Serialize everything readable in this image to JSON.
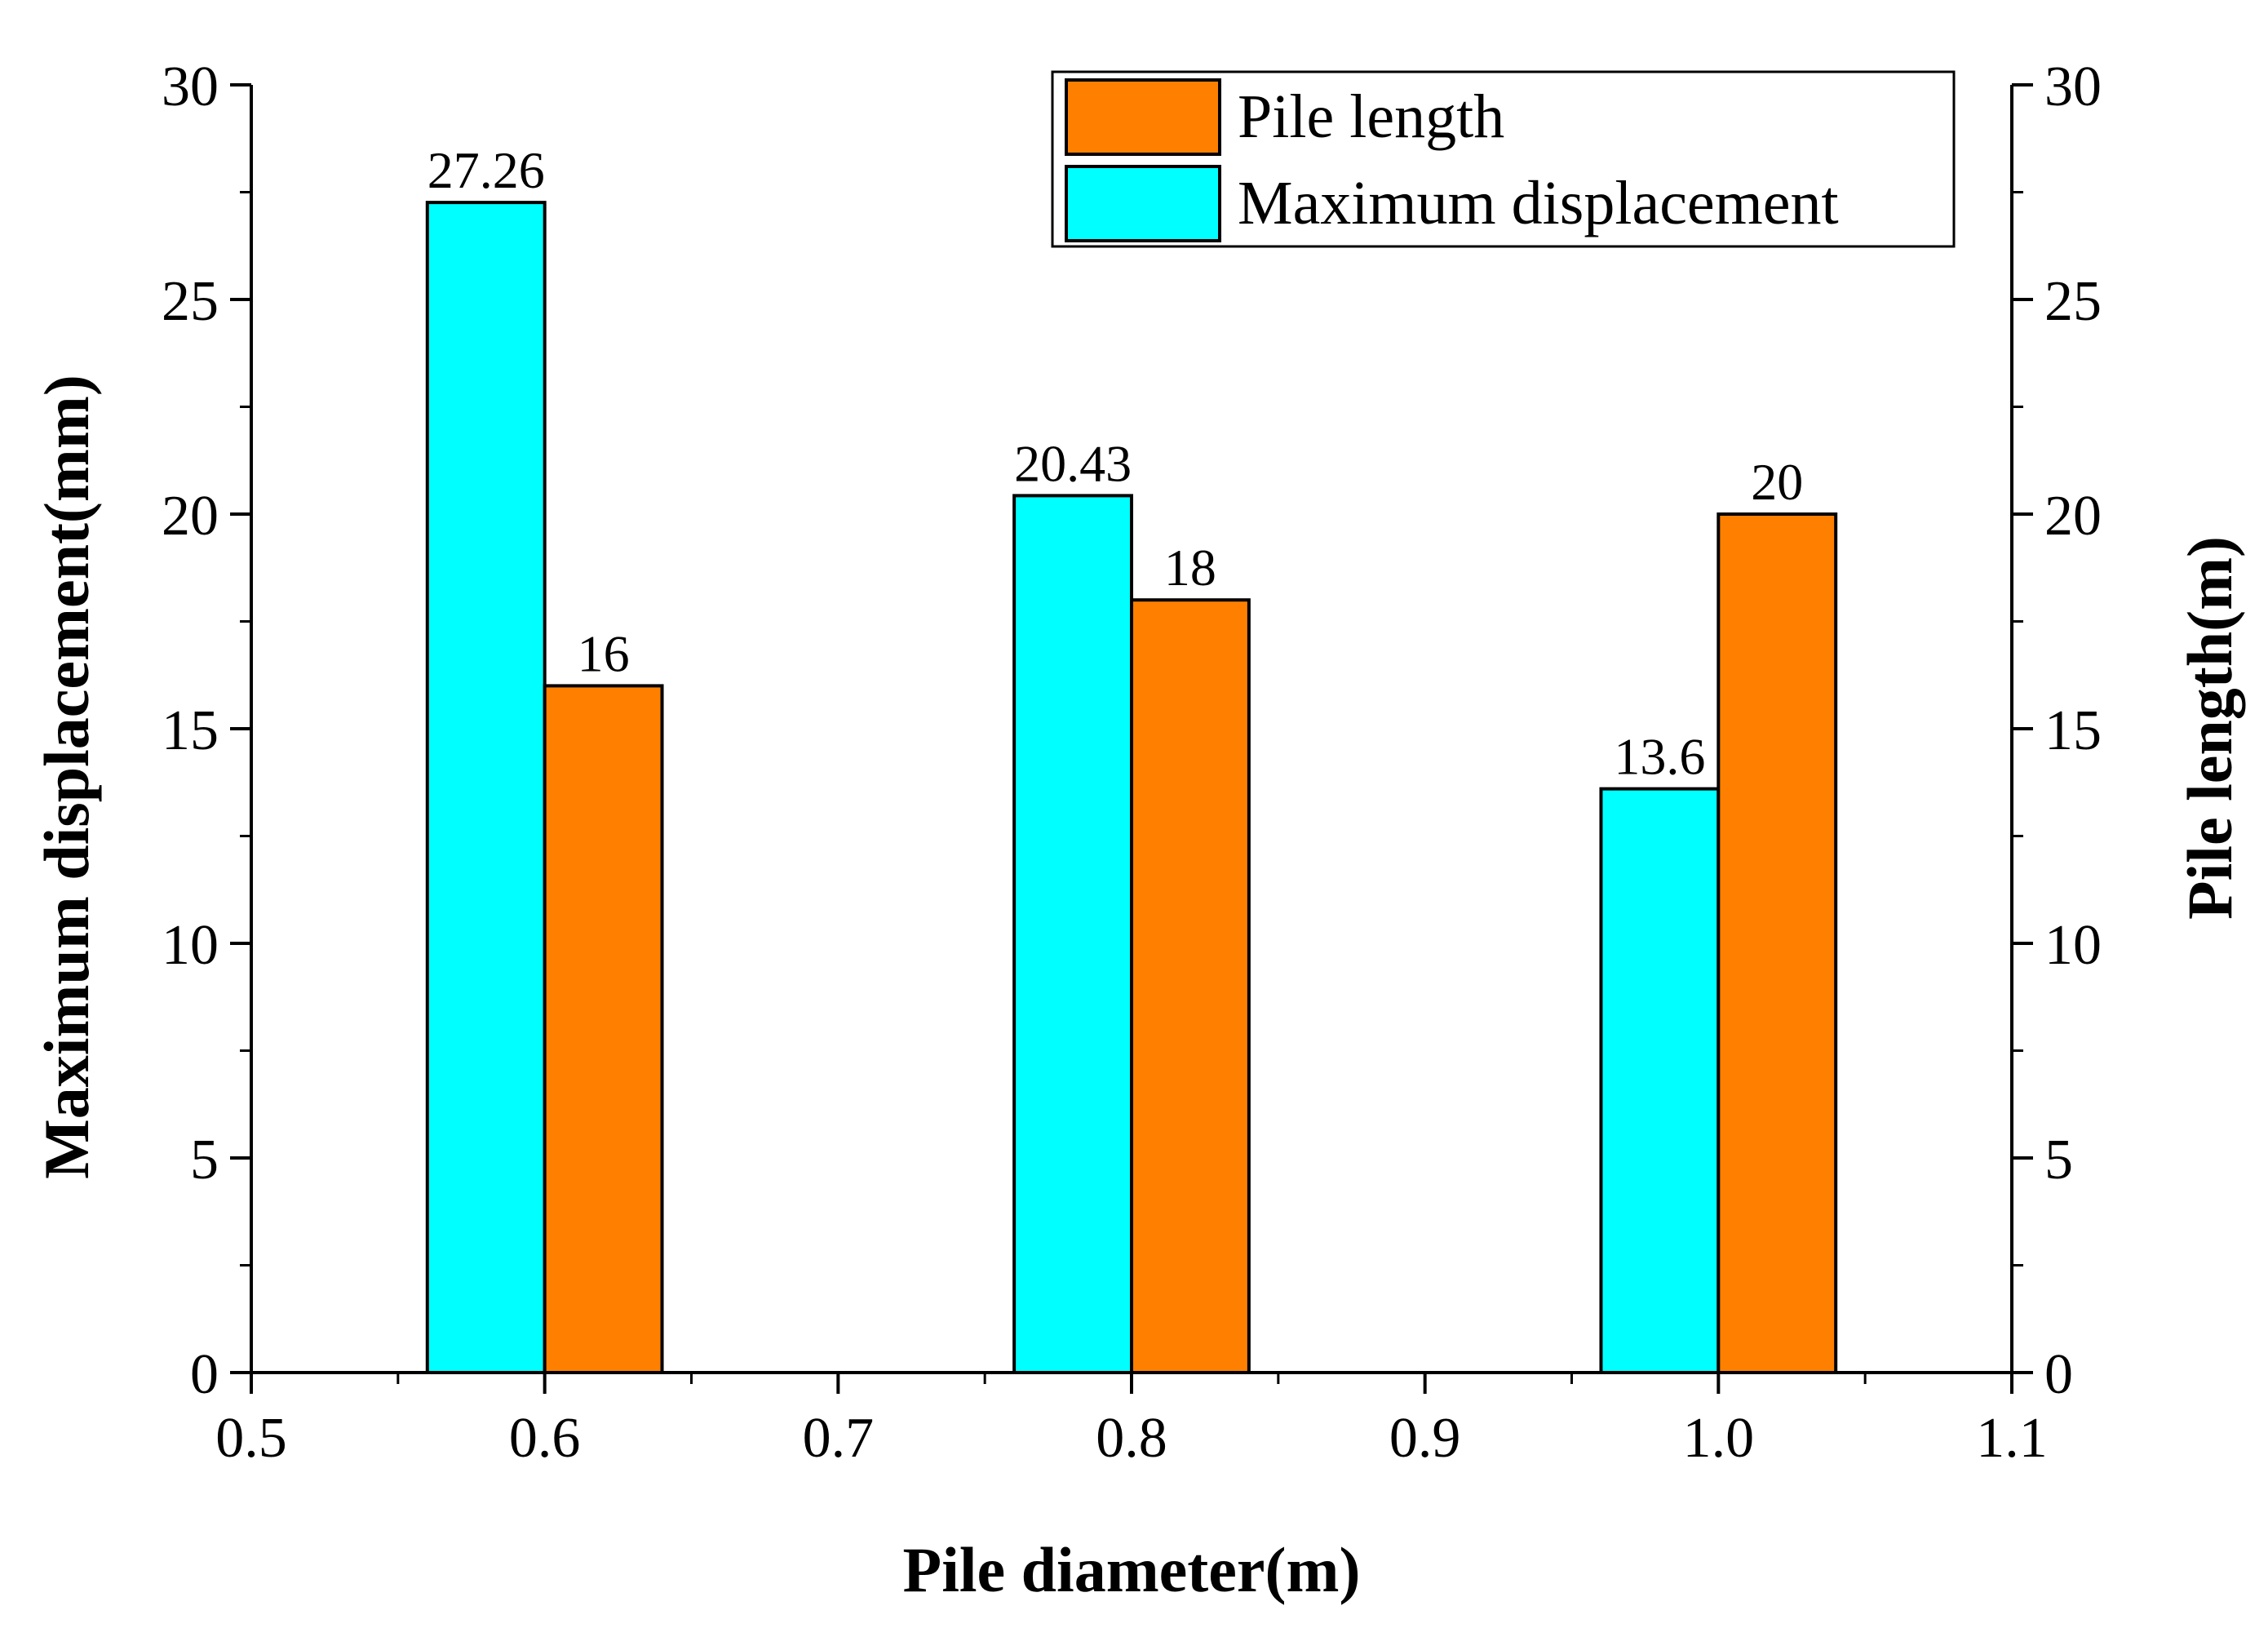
{
  "chart_data": {
    "type": "bar",
    "xlabel": "Pile diameter(m)",
    "ylabel_left": "Maximum displacement(mm)",
    "ylabel_right": "Pile length(m)",
    "xlim": [
      0.5,
      1.1
    ],
    "ylim_left": [
      0,
      30
    ],
    "ylim_right": [
      0,
      30
    ],
    "x_ticks": [
      "0.5",
      "0.6",
      "0.7",
      "0.8",
      "0.9",
      "1.0",
      "1.1"
    ],
    "y_ticks_left": [
      "0",
      "5",
      "10",
      "15",
      "20",
      "25",
      "30"
    ],
    "y_ticks_right": [
      "0",
      "5",
      "10",
      "15",
      "20",
      "25",
      "30"
    ],
    "x": [
      0.6,
      0.8,
      1.0
    ],
    "series": [
      {
        "name": "Maximum displacement",
        "axis": "left",
        "color": "#00FFFF",
        "values": [
          27.26,
          20.43,
          13.6
        ],
        "labels": [
          "27.26",
          "20.43",
          "13.6"
        ]
      },
      {
        "name": "Pile length",
        "axis": "right",
        "color": "#FF8000",
        "values": [
          16,
          18,
          20
        ],
        "labels": [
          "16",
          "18",
          "20"
        ]
      }
    ],
    "legend": {
      "position": "top-right",
      "entries": [
        "Pile length",
        "Maximum displacement"
      ]
    },
    "grid": false
  }
}
